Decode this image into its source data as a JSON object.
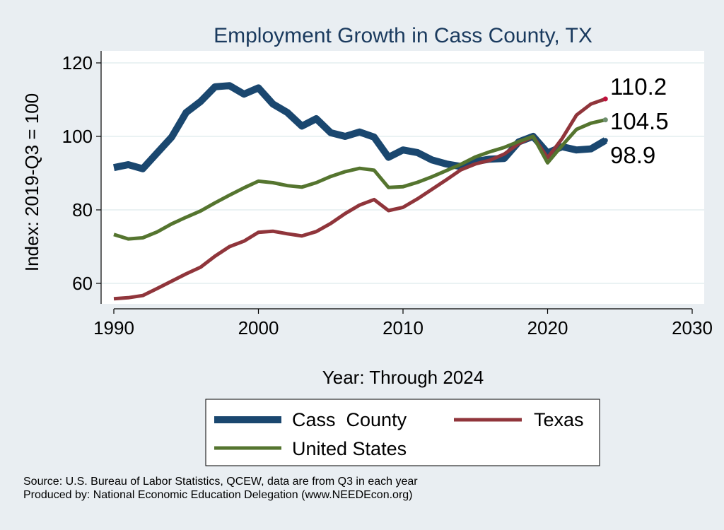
{
  "chart_data": {
    "type": "line",
    "title": "Employment Growth in Cass County, TX",
    "xlabel": "Year: Through 2024",
    "ylabel": "Index: 2019-Q3 = 100",
    "xlim": [
      1990,
      2030
    ],
    "ylim": [
      52,
      122
    ],
    "x_ticks": [
      1990,
      2000,
      2010,
      2020,
      2030
    ],
    "y_ticks": [
      60,
      80,
      100,
      120
    ],
    "grid": true,
    "legend_position": "bottom",
    "x": [
      1990,
      1991,
      1992,
      1993,
      1994,
      1995,
      1996,
      1997,
      1998,
      1999,
      2000,
      2001,
      2002,
      2003,
      2004,
      2005,
      2006,
      2007,
      2008,
      2009,
      2010,
      2011,
      2012,
      2013,
      2014,
      2015,
      2016,
      2017,
      2018,
      2019,
      2020,
      2021,
      2022,
      2023,
      2024
    ],
    "series": [
      {
        "name": "Cass  County",
        "color": "#1a476f",
        "end_label": "98.9",
        "values": [
          91.5,
          92.3,
          91.2,
          95.5,
          99.8,
          106.5,
          109.5,
          113.5,
          113.8,
          111.5,
          113.2,
          108.8,
          106.5,
          102.8,
          104.8,
          101.0,
          100.0,
          101.2,
          99.8,
          94.3,
          96.3,
          95.6,
          93.6,
          92.5,
          91.8,
          93.2,
          93.8,
          94.0,
          98.5,
          100.0,
          95.5,
          97.2,
          96.3,
          96.6,
          98.9
        ]
      },
      {
        "name": "Texas",
        "color": "#90353b",
        "end_label": "110.2",
        "values": [
          55.8,
          56.1,
          56.7,
          58.6,
          60.6,
          62.6,
          64.4,
          67.4,
          70.0,
          71.5,
          73.9,
          74.2,
          73.5,
          72.9,
          74.1,
          76.3,
          79.0,
          81.3,
          82.8,
          79.8,
          80.7,
          83.0,
          85.6,
          88.2,
          90.9,
          92.5,
          93.5,
          95.2,
          98.0,
          100.0,
          94.2,
          99.4,
          105.8,
          108.8,
          110.2
        ]
      },
      {
        "name": "United States",
        "color": "#55752f",
        "end_label": "104.5",
        "values": [
          73.3,
          72.1,
          72.4,
          74.0,
          76.2,
          78.0,
          79.7,
          81.9,
          84.0,
          86.0,
          87.8,
          87.4,
          86.6,
          86.2,
          87.4,
          89.1,
          90.4,
          91.3,
          90.8,
          86.1,
          86.3,
          87.5,
          89.0,
          90.7,
          92.4,
          94.4,
          95.8,
          97.0,
          98.6,
          100.0,
          92.8,
          97.5,
          101.9,
          103.6,
          104.5
        ]
      }
    ]
  },
  "legend": {
    "items": [
      {
        "label": "Cass  County",
        "color": "#1a476f"
      },
      {
        "label": "Texas",
        "color": "#90353b"
      },
      {
        "label": "United States",
        "color": "#55752f"
      }
    ]
  },
  "source": {
    "line1": "Source: U.S. Bureau of Labor Statistics, QCEW, data are from Q3 in each year",
    "line2": "Produced by: National Economic Education Delegation (www.NEEDEcon.org)"
  }
}
